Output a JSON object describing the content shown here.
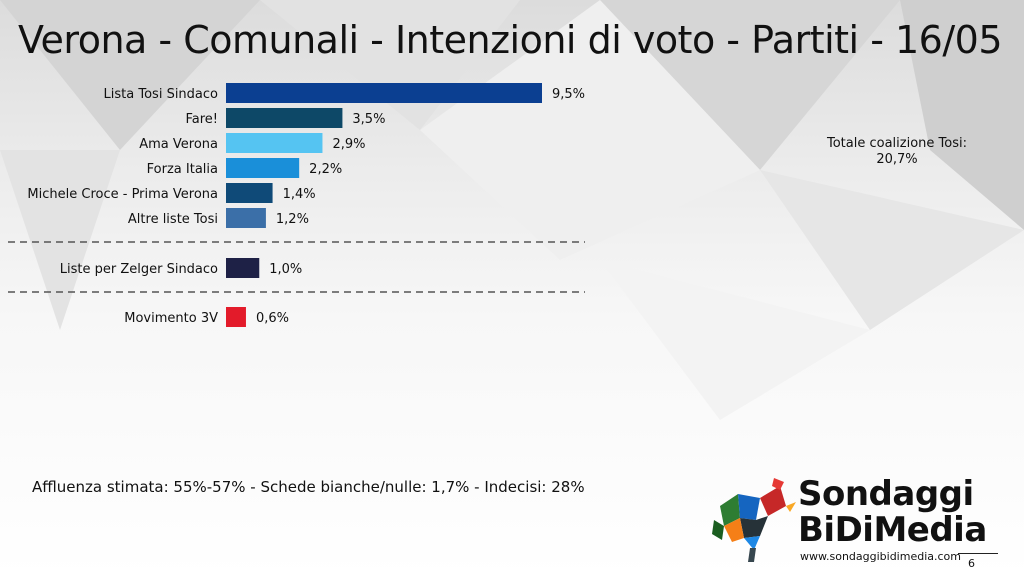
{
  "title": "Verona - Comunali - Intenzioni di voto - Partiti - 16/05",
  "coalition_note": {
    "label": "Totale coalizione Tosi:",
    "value": "20,7%"
  },
  "footer_note": "Affluenza stimata: 55%-57% - Schede bianche/nulle: 1,7% - Indecisi: 28%",
  "brand": {
    "line1": "Sondaggi",
    "line2": "BiDiMedia",
    "site": "www.sondaggibidimedia.com"
  },
  "page_number": "6",
  "chart_data": {
    "type": "bar",
    "orientation": "horizontal",
    "title": "Verona - Comunali - Intenzioni di voto - Partiti - 16/05",
    "xlabel": "",
    "ylabel": "",
    "xlim": [
      0,
      9.5
    ],
    "grid": false,
    "groups_separated_by_dashed_lines": [
      [
        0,
        5
      ],
      [
        6,
        6
      ],
      [
        7,
        7
      ]
    ],
    "categories": [
      "Lista Tosi Sindaco",
      "Fare!",
      "Ama Verona",
      "Forza Italia",
      "Michele Croce - Prima Verona",
      "Altre liste Tosi",
      "Liste per Zelger Sindaco",
      "Movimento 3V"
    ],
    "values": [
      9.5,
      3.5,
      2.9,
      2.2,
      1.4,
      1.2,
      1.0,
      0.6
    ],
    "value_labels": [
      "9,5%",
      "3,5%",
      "2,9%",
      "2,2%",
      "1,4%",
      "1,2%",
      "1,0%",
      "0,6%"
    ],
    "colors": [
      "#0b3f91",
      "#0d4867",
      "#55c4f2",
      "#1a8fd9",
      "#0f4a78",
      "#3b6fa8",
      "#1e2146",
      "#e31b2a"
    ]
  }
}
